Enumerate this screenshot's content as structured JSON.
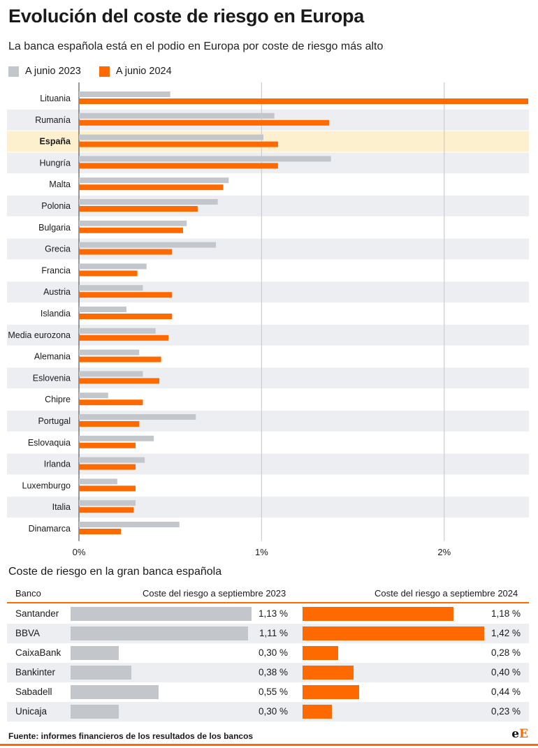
{
  "title": "Evolución del coste de riesgo en Europa",
  "subtitle": "La banca española está en el podio en Europa por coste de riesgo más alto",
  "colors": {
    "series_2023": "#c3c7cc",
    "series_2024": "#ff6a00",
    "highlight": "#fdf0cf",
    "row_alt": "#eceef1",
    "grid": "#cccccc"
  },
  "chart_data": [
    {
      "type": "bar",
      "orientation": "horizontal",
      "categories": [
        "Lituania",
        "Rumanía",
        "España",
        "Hungría",
        "Malta",
        "Polonia",
        "Bulgaria",
        "Grecia",
        "Francia",
        "Austria",
        "Islandia",
        "Media eurozona",
        "Alemania",
        "Eslovenia",
        "Chipre",
        "Portugal",
        "Eslovaquia",
        "Irlanda",
        "Luxemburgo",
        "Italia",
        "Dinamarca"
      ],
      "highlight_category": "España",
      "series": [
        {
          "name": "A junio 2023",
          "values": [
            0.5,
            1.07,
            1.01,
            1.38,
            0.82,
            0.76,
            0.59,
            0.75,
            0.37,
            0.35,
            0.26,
            0.42,
            0.33,
            0.35,
            0.16,
            0.64,
            0.41,
            0.36,
            0.21,
            0.31,
            0.55
          ]
        },
        {
          "name": "A junio 2024",
          "values": [
            2.46,
            1.37,
            1.09,
            1.09,
            0.79,
            0.65,
            0.57,
            0.51,
            0.32,
            0.51,
            0.51,
            0.49,
            0.45,
            0.44,
            0.35,
            0.33,
            0.31,
            0.31,
            0.31,
            0.3,
            0.23
          ]
        }
      ],
      "xlim": [
        0,
        2.46
      ],
      "ticks": [
        0,
        1,
        2
      ],
      "tick_labels": [
        "0%",
        "1%",
        "2%"
      ],
      "grid": true,
      "legend_position": "top-left"
    },
    {
      "type": "table",
      "title": "Coste de riesgo en la gran banca española",
      "columns": [
        "Banco",
        "Coste del riesgo a septiembre 2023",
        "Coste del riesgo a septiembre 2024"
      ],
      "rows": [
        {
          "bank": "Santander",
          "v2023": 1.13,
          "v2024": 1.18,
          "label2023": "1,13 %",
          "label2024": "1,18 %"
        },
        {
          "bank": "BBVA",
          "v2023": 1.11,
          "v2024": 1.42,
          "label2023": "1,11 %",
          "label2024": "1,42 %"
        },
        {
          "bank": "CaixaBank",
          "v2023": 0.3,
          "v2024": 0.28,
          "label2023": "0,30 %",
          "label2024": "0,28 %"
        },
        {
          "bank": "Bankinter",
          "v2023": 0.38,
          "v2024": 0.4,
          "label2023": "0,38 %",
          "label2024": "0,40 %"
        },
        {
          "bank": "Sabadell",
          "v2023": 0.55,
          "v2024": 0.44,
          "label2023": "0,55 %",
          "label2024": "0,44 %"
        },
        {
          "bank": "Unicaja",
          "v2023": 0.3,
          "v2024": 0.23,
          "label2023": "0,30 %",
          "label2024": "0,23 %"
        }
      ]
    }
  ],
  "source": "Fuente: informes financieros de los resultados de los bancos",
  "logo_text": {
    "first": "e",
    "second": "E"
  }
}
